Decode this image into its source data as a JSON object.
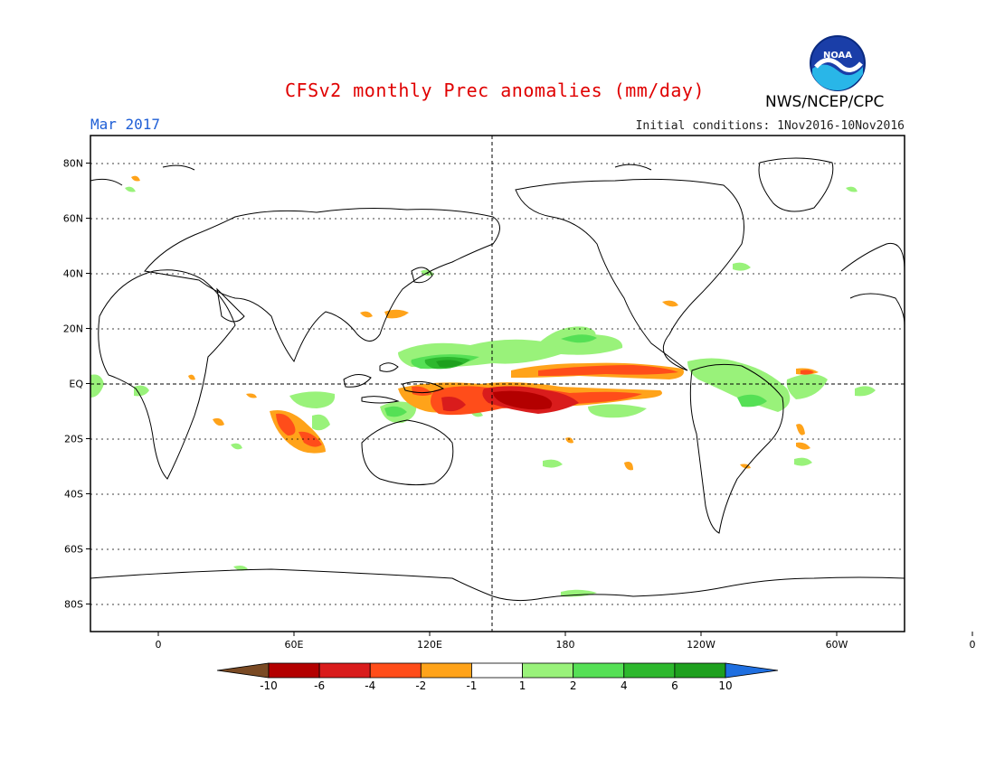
{
  "header": {
    "title": "CFSv2 monthly Prec anomalies (mm/day)",
    "organization": "NWS/NCEP/CPC",
    "logo_text": "NOAA",
    "valid_month": "Mar 2017",
    "initial_conditions": "Initial conditions: 1Nov2016-10Nov2016"
  },
  "map": {
    "lat_ticks": [
      "80N",
      "60N",
      "40N",
      "20N",
      "EQ",
      "20S",
      "40S",
      "60S",
      "80S"
    ],
    "lon_ticks": [
      "0",
      "60E",
      "120E",
      "180",
      "120W",
      "60W",
      "0"
    ],
    "lon_range": [
      -30,
      330
    ],
    "lat_range": [
      -90,
      90
    ]
  },
  "colorbar": {
    "labels": [
      "-10",
      "-6",
      "-4",
      "-2",
      "-1",
      "1",
      "2",
      "4",
      "6",
      "10"
    ],
    "colors": [
      "#7a4a24",
      "#b30000",
      "#d91c1c",
      "#ff4d1a",
      "#ffa31a",
      "#ffffff",
      "#99f27a",
      "#55e055",
      "#2db82d",
      "#1ea01e",
      "#1f6fe0"
    ]
  },
  "anomaly_legend": {
    "dry_strong": "#c41010",
    "dry_mid": "#ff4d1a",
    "dry_weak": "#ffa31a",
    "wet_weak": "#99f27a",
    "wet_mid": "#55e055",
    "wet_strong": "#2db82d"
  }
}
